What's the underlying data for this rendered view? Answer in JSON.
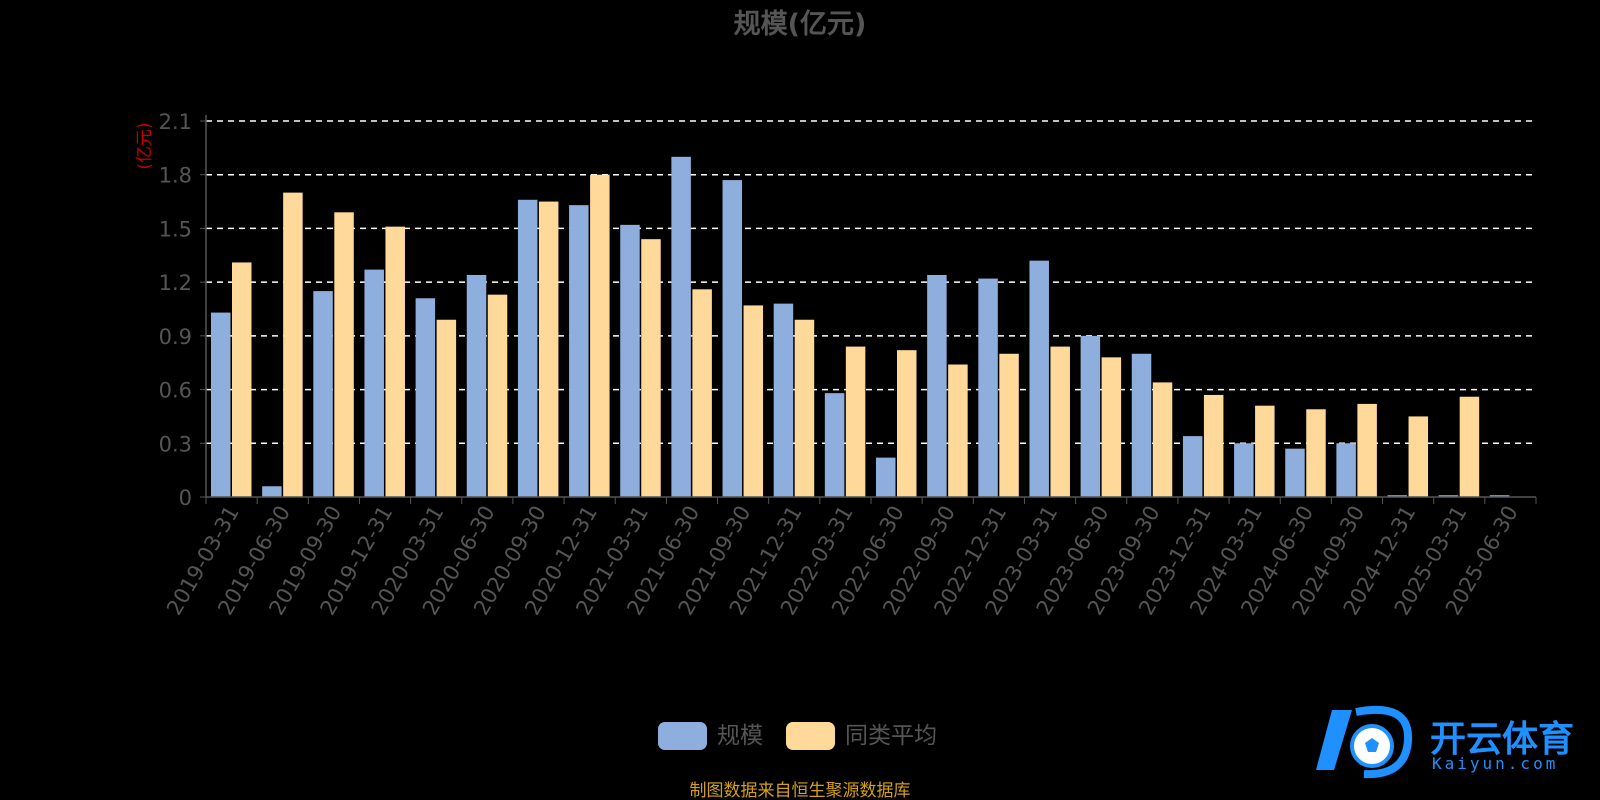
{
  "chart_data": {
    "type": "bar",
    "title": "规模(亿元)",
    "ylabel": "(亿元)",
    "ylim": [
      0,
      2.1
    ],
    "yticks": [
      "0",
      "0.3",
      "0.6",
      "0.9",
      "1.2",
      "1.5",
      "1.8",
      "2.1"
    ],
    "grid": true,
    "categories": [
      "2019-03-31",
      "2019-06-30",
      "2019-09-30",
      "2019-12-31",
      "2020-03-31",
      "2020-06-30",
      "2020-09-30",
      "2020-12-31",
      "2021-03-31",
      "2021-06-30",
      "2021-09-30",
      "2021-12-31",
      "2022-03-31",
      "2022-06-30",
      "2022-09-30",
      "2022-12-31",
      "2023-03-31",
      "2023-06-30",
      "2023-09-30",
      "2023-12-31",
      "2024-03-31",
      "2024-06-30",
      "2024-09-30",
      "2024-12-31",
      "2025-03-31",
      "2025-06-30"
    ],
    "series": [
      {
        "name": "规模",
        "color": "#8eaedd",
        "values": [
          1.03,
          0.06,
          1.15,
          1.27,
          1.11,
          1.24,
          1.66,
          1.63,
          1.52,
          1.9,
          1.77,
          1.08,
          0.58,
          0.22,
          1.24,
          1.22,
          1.32,
          0.9,
          0.8,
          0.34,
          0.3,
          0.27,
          0.3,
          0.01,
          0.01,
          0.01
        ]
      },
      {
        "name": "同类平均",
        "color": "#ffd99a",
        "values": [
          1.31,
          1.7,
          1.59,
          1.51,
          0.99,
          1.13,
          1.65,
          1.8,
          1.44,
          1.16,
          1.07,
          0.99,
          0.84,
          0.82,
          0.74,
          0.8,
          0.84,
          0.78,
          0.64,
          0.57,
          0.51,
          0.49,
          0.52,
          0.45,
          0.56,
          null
        ]
      }
    ],
    "legend_position": "bottom-center"
  },
  "source_note": "制图数据来自恒生聚源数据库",
  "watermark": {
    "brand": "开云体育",
    "domain": "Kaiyun.com"
  },
  "colors": {
    "axis_text": "#555555",
    "ylabel": "#cc0000",
    "grid": "#ffffff",
    "source": "#d4a017"
  }
}
